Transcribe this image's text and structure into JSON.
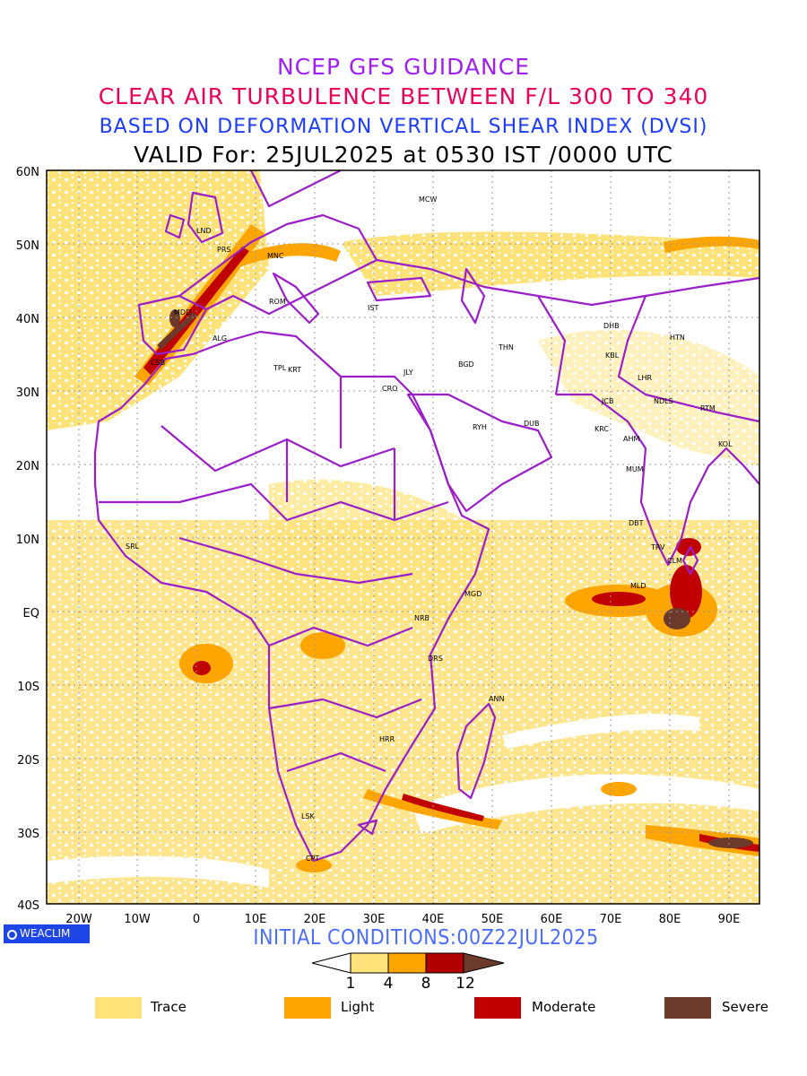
{
  "titles": {
    "line1": "NCEP GFS GUIDANCE",
    "line2": "CLEAR AIR TURBULENCE BETWEEN F/L 300 TO 340",
    "line3": "BASED ON DEFORMATION VERTICAL SHEAR INDEX (DVSI)",
    "line4": "VALID For: 25JUL2025 at 0530 IST /0000 UTC"
  },
  "map": {
    "lat_labels": [
      "60N",
      "50N",
      "40N",
      "30N",
      "20N",
      "10N",
      "EQ",
      "10S",
      "20S",
      "30S",
      "40S"
    ],
    "lon_labels": [
      "20W",
      "10W",
      "0",
      "10E",
      "20E",
      "30E",
      "40E",
      "50E",
      "60E",
      "70E",
      "80E",
      "90E"
    ],
    "cities": [
      {
        "code": "MCW"
      },
      {
        "code": "LND"
      },
      {
        "code": "PRS"
      },
      {
        "code": "MNC"
      },
      {
        "code": "ROM"
      },
      {
        "code": "IST"
      },
      {
        "code": "MDD"
      },
      {
        "code": "ALG"
      },
      {
        "code": "CSB"
      },
      {
        "code": "TPL"
      },
      {
        "code": "KRT"
      },
      {
        "code": "CRO"
      },
      {
        "code": "JLY"
      },
      {
        "code": "BGD"
      },
      {
        "code": "THN"
      },
      {
        "code": "DHB"
      },
      {
        "code": "HTN"
      },
      {
        "code": "KBL"
      },
      {
        "code": "LHR"
      },
      {
        "code": "JCB"
      },
      {
        "code": "NDLS"
      },
      {
        "code": "RTM"
      },
      {
        "code": "RYH"
      },
      {
        "code": "DUB"
      },
      {
        "code": "KRC"
      },
      {
        "code": "AHM"
      },
      {
        "code": "KOL"
      },
      {
        "code": "MUM"
      },
      {
        "code": "DBT"
      },
      {
        "code": "TRV"
      },
      {
        "code": "CLM"
      },
      {
        "code": "MLD"
      },
      {
        "code": "MGD"
      },
      {
        "code": "NRB"
      },
      {
        "code": "DRS"
      },
      {
        "code": "ANN"
      },
      {
        "code": "HRR"
      },
      {
        "code": "LSK"
      },
      {
        "code": "CPT"
      },
      {
        "code": "SRL"
      }
    ]
  },
  "logo": "WEACLIM",
  "initial_conditions": "INITIAL CONDITIONS:00Z22JUL2025",
  "colorbar": {
    "ticks": [
      "1",
      "4",
      "8",
      "12"
    ],
    "colors": [
      "#ffffff",
      "#ffe27a",
      "#ffa500",
      "#b00000",
      "#6b3a2a"
    ]
  },
  "legend": [
    {
      "label": "Trace",
      "color": "#ffe27a"
    },
    {
      "label": "Light",
      "color": "#ffa500"
    },
    {
      "label": "Moderate",
      "color": "#c00000"
    },
    {
      "label": "Severe",
      "color": "#6b3a2a"
    }
  ]
}
